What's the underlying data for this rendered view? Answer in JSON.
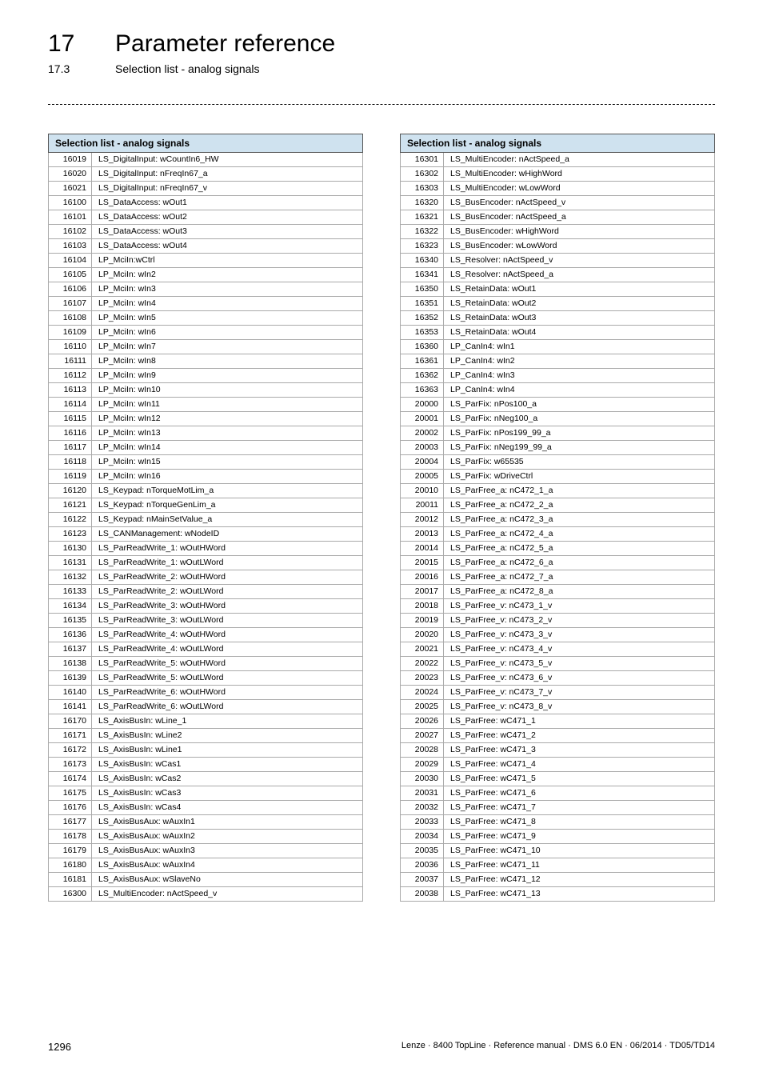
{
  "header": {
    "chapter_number": "17",
    "chapter_title": "Parameter reference",
    "section_number": "17.3",
    "section_title": "Selection list - analog signals"
  },
  "table_title": "Selection list - analog signals",
  "left_rows": [
    {
      "code": "16019",
      "label": "LS_DigitalInput: wCountIn6_HW"
    },
    {
      "code": "16020",
      "label": "LS_DigitalInput: nFreqIn67_a"
    },
    {
      "code": "16021",
      "label": "LS_DigitalInput: nFreqIn67_v"
    },
    {
      "code": "16100",
      "label": "LS_DataAccess: wOut1"
    },
    {
      "code": "16101",
      "label": "LS_DataAccess: wOut2"
    },
    {
      "code": "16102",
      "label": "LS_DataAccess: wOut3"
    },
    {
      "code": "16103",
      "label": "LS_DataAccess: wOut4"
    },
    {
      "code": "16104",
      "label": "LP_MciIn:wCtrl"
    },
    {
      "code": "16105",
      "label": "LP_MciIn: wIn2"
    },
    {
      "code": "16106",
      "label": "LP_MciIn: wIn3"
    },
    {
      "code": "16107",
      "label": "LP_MciIn: wIn4"
    },
    {
      "code": "16108",
      "label": "LP_MciIn: wIn5"
    },
    {
      "code": "16109",
      "label": "LP_MciIn: wIn6"
    },
    {
      "code": "16110",
      "label": "LP_MciIn: wIn7"
    },
    {
      "code": "16111",
      "label": "LP_MciIn: wIn8"
    },
    {
      "code": "16112",
      "label": "LP_MciIn: wIn9"
    },
    {
      "code": "16113",
      "label": "LP_MciIn: wIn10"
    },
    {
      "code": "16114",
      "label": "LP_MciIn: wIn11"
    },
    {
      "code": "16115",
      "label": "LP_MciIn: wIn12"
    },
    {
      "code": "16116",
      "label": "LP_MciIn: wIn13"
    },
    {
      "code": "16117",
      "label": "LP_MciIn: wIn14"
    },
    {
      "code": "16118",
      "label": "LP_MciIn: wIn15"
    },
    {
      "code": "16119",
      "label": "LP_MciIn: wIn16"
    },
    {
      "code": "16120",
      "label": "LS_Keypad: nTorqueMotLim_a"
    },
    {
      "code": "16121",
      "label": "LS_Keypad: nTorqueGenLim_a"
    },
    {
      "code": "16122",
      "label": "LS_Keypad: nMainSetValue_a"
    },
    {
      "code": "16123",
      "label": "LS_CANManagement: wNodeID"
    },
    {
      "code": "16130",
      "label": "LS_ParReadWrite_1: wOutHWord"
    },
    {
      "code": "16131",
      "label": "LS_ParReadWrite_1: wOutLWord"
    },
    {
      "code": "16132",
      "label": "LS_ParReadWrite_2: wOutHWord"
    },
    {
      "code": "16133",
      "label": "LS_ParReadWrite_2: wOutLWord"
    },
    {
      "code": "16134",
      "label": "LS_ParReadWrite_3: wOutHWord"
    },
    {
      "code": "16135",
      "label": "LS_ParReadWrite_3: wOutLWord"
    },
    {
      "code": "16136",
      "label": "LS_ParReadWrite_4: wOutHWord"
    },
    {
      "code": "16137",
      "label": "LS_ParReadWrite_4: wOutLWord"
    },
    {
      "code": "16138",
      "label": "LS_ParReadWrite_5: wOutHWord"
    },
    {
      "code": "16139",
      "label": "LS_ParReadWrite_5: wOutLWord"
    },
    {
      "code": "16140",
      "label": "LS_ParReadWrite_6: wOutHWord"
    },
    {
      "code": "16141",
      "label": "LS_ParReadWrite_6: wOutLWord"
    },
    {
      "code": "16170",
      "label": "LS_AxisBusIn: wLine_1"
    },
    {
      "code": "16171",
      "label": "LS_AxisBusIn: wLine2"
    },
    {
      "code": "16172",
      "label": "LS_AxisBusIn: wLine1"
    },
    {
      "code": "16173",
      "label": "LS_AxisBusIn: wCas1"
    },
    {
      "code": "16174",
      "label": "LS_AxisBusIn: wCas2"
    },
    {
      "code": "16175",
      "label": "LS_AxisBusIn: wCas3"
    },
    {
      "code": "16176",
      "label": "LS_AxisBusIn: wCas4"
    },
    {
      "code": "16177",
      "label": "LS_AxisBusAux: wAuxIn1"
    },
    {
      "code": "16178",
      "label": "LS_AxisBusAux: wAuxIn2"
    },
    {
      "code": "16179",
      "label": "LS_AxisBusAux: wAuxIn3"
    },
    {
      "code": "16180",
      "label": "LS_AxisBusAux: wAuxIn4"
    },
    {
      "code": "16181",
      "label": "LS_AxisBusAux: wSlaveNo"
    },
    {
      "code": "16300",
      "label": "LS_MultiEncoder: nActSpeed_v"
    }
  ],
  "right_rows": [
    {
      "code": "16301",
      "label": "LS_MultiEncoder: nActSpeed_a"
    },
    {
      "code": "16302",
      "label": "LS_MultiEncoder: wHighWord"
    },
    {
      "code": "16303",
      "label": "LS_MultiEncoder: wLowWord"
    },
    {
      "code": "16320",
      "label": "LS_BusEncoder: nActSpeed_v"
    },
    {
      "code": "16321",
      "label": "LS_BusEncoder: nActSpeed_a"
    },
    {
      "code": "16322",
      "label": "LS_BusEncoder: wHighWord"
    },
    {
      "code": "16323",
      "label": "LS_BusEncoder: wLowWord"
    },
    {
      "code": "16340",
      "label": "LS_Resolver: nActSpeed_v"
    },
    {
      "code": "16341",
      "label": "LS_Resolver: nActSpeed_a"
    },
    {
      "code": "16350",
      "label": "LS_RetainData: wOut1"
    },
    {
      "code": "16351",
      "label": "LS_RetainData: wOut2"
    },
    {
      "code": "16352",
      "label": "LS_RetainData: wOut3"
    },
    {
      "code": "16353",
      "label": "LS_RetainData: wOut4"
    },
    {
      "code": "16360",
      "label": "LP_CanIn4: wIn1"
    },
    {
      "code": "16361",
      "label": "LP_CanIn4: wIn2"
    },
    {
      "code": "16362",
      "label": "LP_CanIn4: wIn3"
    },
    {
      "code": "16363",
      "label": "LP_CanIn4: wIn4"
    },
    {
      "code": "20000",
      "label": "LS_ParFix: nPos100_a"
    },
    {
      "code": "20001",
      "label": "LS_ParFix: nNeg100_a"
    },
    {
      "code": "20002",
      "label": "LS_ParFix: nPos199_99_a"
    },
    {
      "code": "20003",
      "label": "LS_ParFix: nNeg199_99_a"
    },
    {
      "code": "20004",
      "label": "LS_ParFix: w65535"
    },
    {
      "code": "20005",
      "label": "LS_ParFix: wDriveCtrl"
    },
    {
      "code": "20010",
      "label": "LS_ParFree_a: nC472_1_a"
    },
    {
      "code": "20011",
      "label": "LS_ParFree_a: nC472_2_a"
    },
    {
      "code": "20012",
      "label": "LS_ParFree_a: nC472_3_a"
    },
    {
      "code": "20013",
      "label": "LS_ParFree_a: nC472_4_a"
    },
    {
      "code": "20014",
      "label": "LS_ParFree_a: nC472_5_a"
    },
    {
      "code": "20015",
      "label": "LS_ParFree_a: nC472_6_a"
    },
    {
      "code": "20016",
      "label": "LS_ParFree_a: nC472_7_a"
    },
    {
      "code": "20017",
      "label": "LS_ParFree_a: nC472_8_a"
    },
    {
      "code": "20018",
      "label": "LS_ParFree_v: nC473_1_v"
    },
    {
      "code": "20019",
      "label": "LS_ParFree_v: nC473_2_v"
    },
    {
      "code": "20020",
      "label": "LS_ParFree_v: nC473_3_v"
    },
    {
      "code": "20021",
      "label": "LS_ParFree_v: nC473_4_v"
    },
    {
      "code": "20022",
      "label": "LS_ParFree_v: nC473_5_v"
    },
    {
      "code": "20023",
      "label": "LS_ParFree_v: nC473_6_v"
    },
    {
      "code": "20024",
      "label": "LS_ParFree_v: nC473_7_v"
    },
    {
      "code": "20025",
      "label": "LS_ParFree_v: nC473_8_v"
    },
    {
      "code": "20026",
      "label": "LS_ParFree: wC471_1"
    },
    {
      "code": "20027",
      "label": "LS_ParFree: wC471_2"
    },
    {
      "code": "20028",
      "label": "LS_ParFree: wC471_3"
    },
    {
      "code": "20029",
      "label": "LS_ParFree: wC471_4"
    },
    {
      "code": "20030",
      "label": "LS_ParFree: wC471_5"
    },
    {
      "code": "20031",
      "label": "LS_ParFree: wC471_6"
    },
    {
      "code": "20032",
      "label": "LS_ParFree: wC471_7"
    },
    {
      "code": "20033",
      "label": "LS_ParFree: wC471_8"
    },
    {
      "code": "20034",
      "label": "LS_ParFree: wC471_9"
    },
    {
      "code": "20035",
      "label": "LS_ParFree: wC471_10"
    },
    {
      "code": "20036",
      "label": "LS_ParFree: wC471_11"
    },
    {
      "code": "20037",
      "label": "LS_ParFree: wC471_12"
    },
    {
      "code": "20038",
      "label": "LS_ParFree: wC471_13"
    }
  ],
  "footer": {
    "page_number": "1296",
    "doc_info": "Lenze · 8400 TopLine · Reference manual · DMS 6.0 EN · 06/2014 · TD05/TD14"
  }
}
